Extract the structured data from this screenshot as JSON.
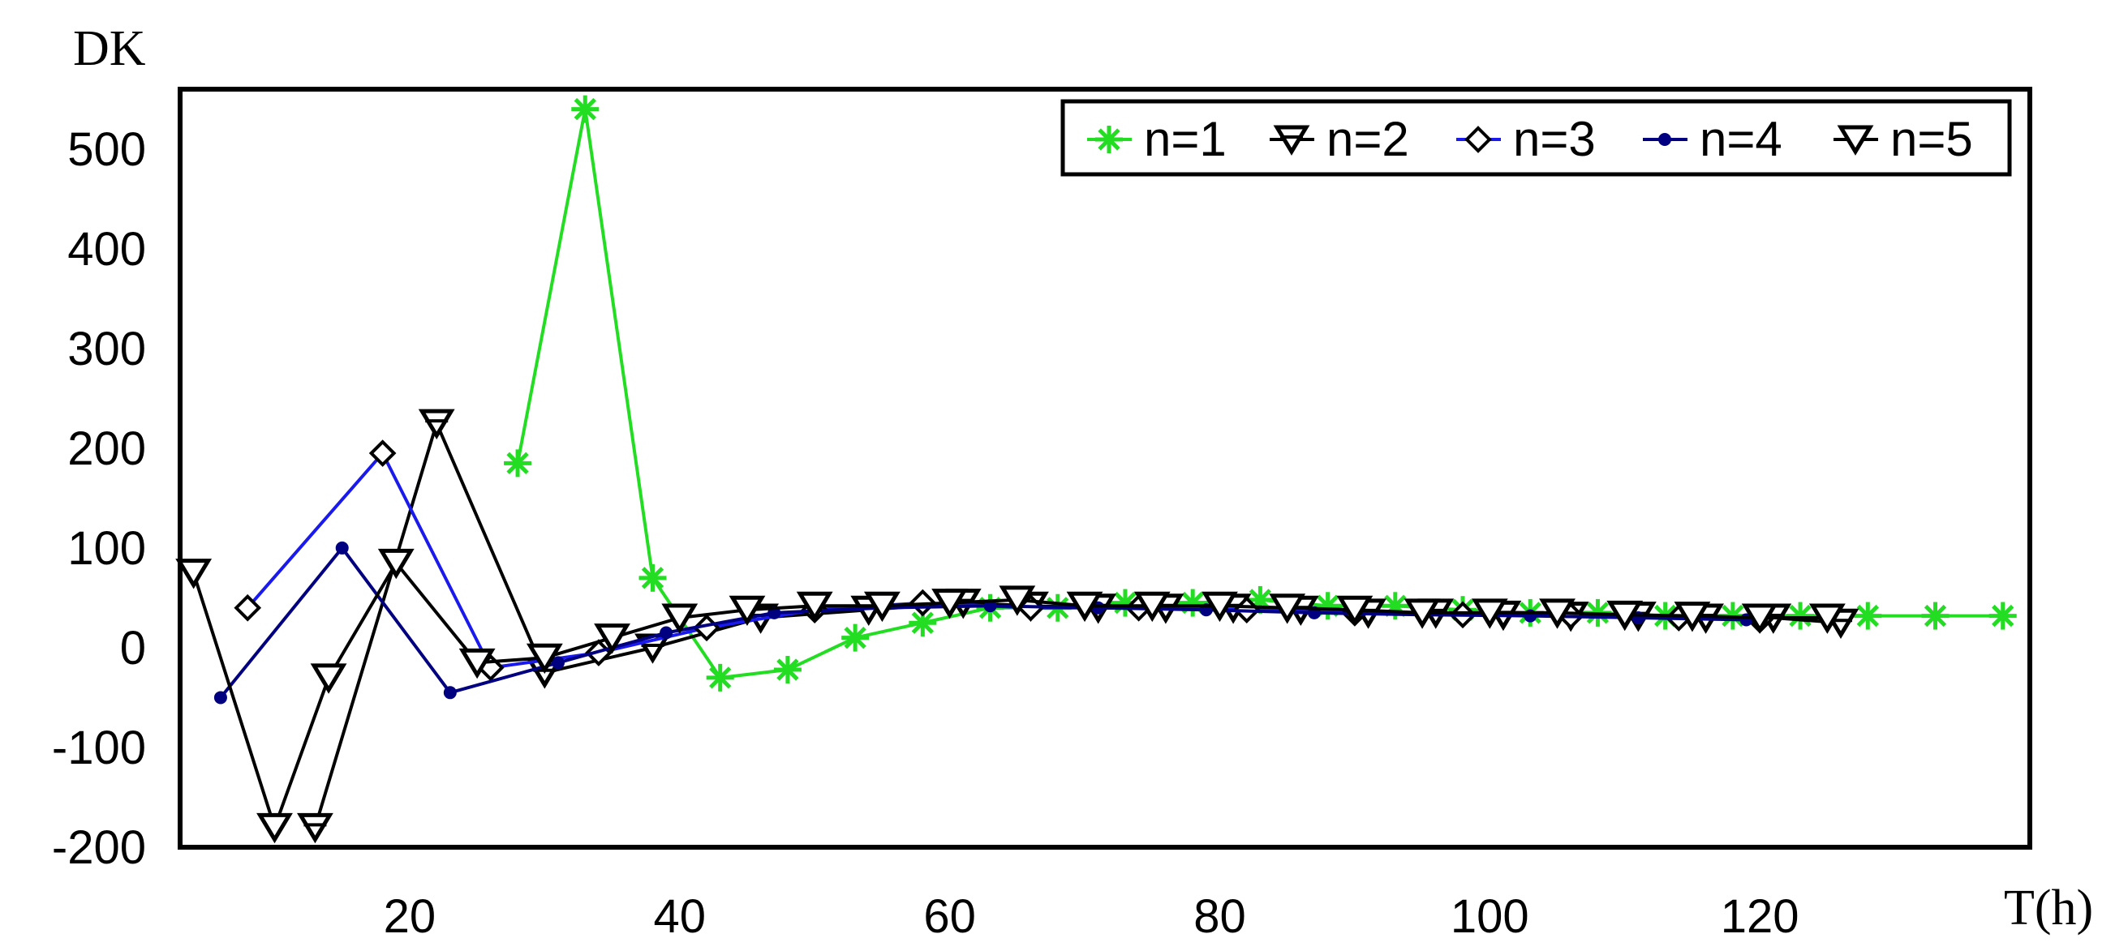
{
  "chart_data": {
    "type": "line",
    "xlabel": "T(h)",
    "ylabel": "DK",
    "xlim": [
      3,
      140
    ],
    "ylim": [
      -200,
      560
    ],
    "xticks": [
      "20",
      "40",
      "60",
      "80",
      "100",
      "120"
    ],
    "yticks": [
      "500",
      "400",
      "300",
      "200",
      "100",
      "0",
      "-100",
      "-200"
    ],
    "legend_position": "top-right",
    "grid": false,
    "series": [
      {
        "name": "n=1",
        "color": "#22dd22",
        "marker": "asterisk",
        "points": [
          [
            28,
            185
          ],
          [
            33,
            540
          ],
          [
            38,
            70
          ],
          [
            43,
            -30
          ],
          [
            48,
            -22
          ],
          [
            53,
            10
          ],
          [
            58,
            25
          ],
          [
            63,
            40
          ],
          [
            68,
            40
          ],
          [
            73,
            45
          ],
          [
            78,
            45
          ],
          [
            83,
            48
          ],
          [
            88,
            42
          ],
          [
            93,
            42
          ],
          [
            98,
            38
          ],
          [
            103,
            35
          ],
          [
            108,
            35
          ],
          [
            113,
            32
          ],
          [
            118,
            32
          ],
          [
            123,
            32
          ],
          [
            128,
            32
          ],
          [
            133,
            32
          ],
          [
            138,
            32
          ]
        ]
      },
      {
        "name": "n=2",
        "color": "#000000",
        "marker": "triangle-down-bar",
        "points": [
          [
            13,
            -180
          ],
          [
            22,
            225
          ],
          [
            30,
            -25
          ],
          [
            38,
            0
          ],
          [
            46,
            30
          ],
          [
            54,
            38
          ],
          [
            61,
            45
          ],
          [
            66,
            42
          ],
          [
            71,
            40
          ],
          [
            76,
            40
          ],
          [
            81,
            40
          ],
          [
            86,
            38
          ],
          [
            91,
            35
          ],
          [
            96,
            35
          ],
          [
            101,
            33
          ],
          [
            106,
            32
          ],
          [
            111,
            32
          ],
          [
            116,
            30
          ],
          [
            121,
            30
          ],
          [
            126,
            25
          ]
        ]
      },
      {
        "name": "n=3",
        "color": "#1a1aee",
        "marker": "diamond",
        "points": [
          [
            8,
            40
          ],
          [
            18,
            195
          ],
          [
            26,
            -20
          ],
          [
            34,
            -5
          ],
          [
            42,
            20
          ],
          [
            50,
            38
          ],
          [
            58,
            45
          ],
          [
            66,
            40
          ],
          [
            74,
            40
          ],
          [
            82,
            38
          ],
          [
            90,
            35
          ],
          [
            98,
            33
          ],
          [
            106,
            32
          ],
          [
            114,
            30
          ],
          [
            120,
            28
          ]
        ]
      },
      {
        "name": "n=4",
        "color": "#000080",
        "marker": "dot",
        "points": [
          [
            6,
            -50
          ],
          [
            15,
            100
          ],
          [
            23,
            -45
          ],
          [
            31,
            -15
          ],
          [
            39,
            15
          ],
          [
            47,
            35
          ],
          [
            55,
            40
          ],
          [
            63,
            42
          ],
          [
            71,
            40
          ],
          [
            79,
            38
          ],
          [
            87,
            35
          ],
          [
            95,
            33
          ],
          [
            103,
            32
          ],
          [
            111,
            30
          ],
          [
            119,
            28
          ]
        ]
      },
      {
        "name": "n=5",
        "color": "#000000",
        "marker": "triangle-down",
        "points": [
          [
            4,
            75
          ],
          [
            10,
            -180
          ],
          [
            14,
            -30
          ],
          [
            19,
            85
          ],
          [
            25,
            -15
          ],
          [
            30,
            -10
          ],
          [
            35,
            10
          ],
          [
            40,
            30
          ],
          [
            45,
            38
          ],
          [
            50,
            42
          ],
          [
            55,
            42
          ],
          [
            60,
            45
          ],
          [
            65,
            48
          ],
          [
            70,
            42
          ],
          [
            75,
            42
          ],
          [
            80,
            42
          ],
          [
            85,
            40
          ],
          [
            90,
            38
          ],
          [
            95,
            35
          ],
          [
            100,
            35
          ],
          [
            105,
            35
          ],
          [
            110,
            33
          ],
          [
            115,
            32
          ],
          [
            120,
            30
          ],
          [
            125,
            30
          ]
        ]
      }
    ]
  }
}
